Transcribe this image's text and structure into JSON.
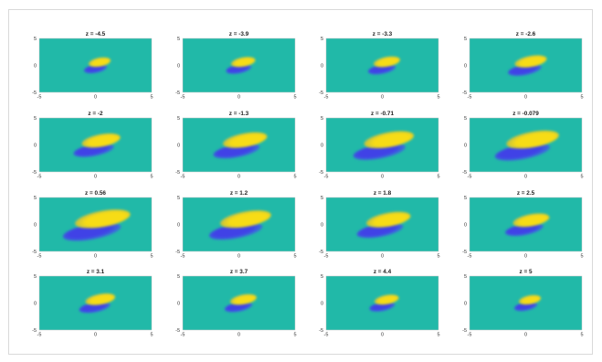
{
  "chart_data": {
    "type": "heatmap",
    "layout": {
      "rows": 4,
      "cols": 4
    },
    "xlim": [
      -5,
      5
    ],
    "ylim": [
      -5,
      5
    ],
    "xticks": [
      "-5",
      "0",
      "5"
    ],
    "yticks": [
      "5",
      "0",
      "-5"
    ],
    "colormap": "parula",
    "colors": {
      "background": "#21b9a8",
      "positive": "#f7dc16",
      "positive_mid": "#c9c43a",
      "negative": "#3f43e6",
      "negative_mid": "#3a6fd9"
    },
    "panels": [
      {
        "title": "z = -4.5",
        "lobe_scale": 0.4,
        "shift": 0.12
      },
      {
        "title": "z = -3.9",
        "lobe_scale": 0.44,
        "shift": 0.11
      },
      {
        "title": "z = -3.3",
        "lobe_scale": 0.48,
        "shift": 0.1
      },
      {
        "title": "z = -2.6",
        "lobe_scale": 0.58,
        "shift": 0.08
      },
      {
        "title": "z = -2",
        "lobe_scale": 0.7,
        "shift": 0.06
      },
      {
        "title": "z = -1.3",
        "lobe_scale": 0.8,
        "shift": 0.04
      },
      {
        "title": "z = -0.71",
        "lobe_scale": 0.9,
        "shift": 0.02
      },
      {
        "title": "z = -0.079",
        "lobe_scale": 0.95,
        "shift": 0.0
      },
      {
        "title": "z = 0.56",
        "lobe_scale": 1.0,
        "shift": -0.02
      },
      {
        "title": "z = 1.2",
        "lobe_scale": 0.92,
        "shift": -0.04
      },
      {
        "title": "z = 1.8",
        "lobe_scale": 0.8,
        "shift": -0.06
      },
      {
        "title": "z = 2.5",
        "lobe_scale": 0.66,
        "shift": -0.08
      },
      {
        "title": "z = 3.1",
        "lobe_scale": 0.54,
        "shift": -0.1
      },
      {
        "title": "z = 3.7",
        "lobe_scale": 0.48,
        "shift": -0.11
      },
      {
        "title": "z = 4.4",
        "lobe_scale": 0.44,
        "shift": -0.12
      },
      {
        "title": "z = 5",
        "lobe_scale": 0.4,
        "shift": -0.13
      }
    ]
  }
}
